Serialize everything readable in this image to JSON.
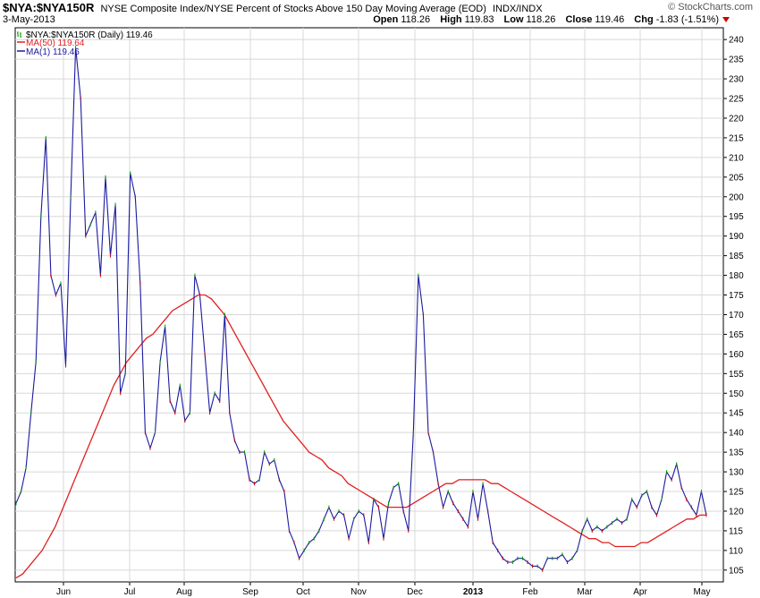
{
  "header": {
    "symbol": "$NYA:$NYA150R",
    "description": "NYSE Composite Index/NYSE Percent of Stocks Above 150 Day Moving Average (EOD)",
    "exchange": "INDX/INDX",
    "brand": "© StockCharts.com",
    "date": "3-May-2013",
    "open_label": "Open",
    "open": "118.26",
    "high_label": "High",
    "high": "119.83",
    "low_label": "Low",
    "low": "118.26",
    "close_label": "Close",
    "close": "119.46",
    "chg_label": "Chg",
    "chg": "-1.83 (-1.51%)"
  },
  "legend": {
    "main": "$NYA:$NYA150R (Daily) 119.46",
    "ma50": "MA(50) 119.64",
    "ma1": "MA(1) 119.46"
  },
  "colors": {
    "price": "#1a1aa0",
    "ma50": "#e02020",
    "grid": "#d8d8d8",
    "up": "#009900",
    "down": "#cc0000"
  },
  "chart_data": {
    "type": "line",
    "x_ticks": [
      "Jun",
      "Jul",
      "Aug",
      "Sep",
      "Oct",
      "Nov",
      "Dec",
      "2013",
      "Feb",
      "Mar",
      "Apr",
      "May"
    ],
    "y_ticks": [
      105,
      110,
      115,
      120,
      125,
      130,
      135,
      140,
      145,
      150,
      155,
      160,
      165,
      170,
      175,
      180,
      185,
      190,
      195,
      200,
      205,
      210,
      215,
      220,
      225,
      230,
      235,
      240
    ],
    "ylim": [
      102,
      243
    ],
    "grid": true,
    "series": [
      {
        "name": "$NYA:$NYA150R",
        "values": [
          122,
          125,
          131,
          145,
          158,
          195,
          215,
          180,
          175,
          178,
          157,
          200,
          238,
          225,
          190,
          193,
          196,
          180,
          205,
          185,
          198,
          150,
          155,
          206,
          200,
          178,
          140,
          136,
          140,
          158,
          167,
          148,
          145,
          152,
          143,
          145,
          180,
          175,
          160,
          145,
          150,
          148,
          170,
          145,
          138,
          135,
          135,
          128,
          127,
          128,
          135,
          132,
          133,
          128,
          125,
          115,
          112,
          108,
          110,
          112,
          113,
          115,
          118,
          121,
          118,
          120,
          119,
          113,
          118,
          120,
          119,
          112,
          123,
          121,
          113,
          122,
          126,
          127,
          120,
          115,
          140,
          180,
          170,
          140,
          135,
          127,
          121,
          125,
          122,
          120,
          118,
          116,
          125,
          118,
          127,
          120,
          112,
          110,
          108,
          107,
          107,
          108,
          108,
          107,
          106,
          106,
          105,
          108,
          108,
          108,
          109,
          107,
          108,
          110,
          115,
          118,
          115,
          116,
          115,
          116,
          117,
          118,
          117,
          118,
          123,
          121,
          124,
          125,
          121,
          119,
          123,
          130,
          128,
          132,
          126,
          123,
          121,
          119,
          125,
          119
        ]
      },
      {
        "name": "MA(50)",
        "values": [
          103,
          104,
          106,
          108,
          110,
          113,
          116,
          120,
          124,
          128,
          132,
          136,
          140,
          144,
          148,
          152,
          155,
          158,
          160,
          162,
          164,
          165,
          167,
          169,
          171,
          172,
          173,
          174,
          175,
          175,
          174,
          172,
          170,
          167,
          164,
          161,
          158,
          155,
          152,
          149,
          146,
          143,
          141,
          139,
          137,
          135,
          134,
          133,
          131,
          130,
          129,
          127,
          126,
          125,
          124,
          123,
          122,
          121,
          121,
          121,
          121,
          122,
          123,
          124,
          125,
          126,
          127,
          127,
          128,
          128,
          128,
          128,
          128,
          127,
          127,
          126,
          125,
          124,
          123,
          122,
          121,
          120,
          119,
          118,
          117,
          116,
          115,
          114,
          113,
          113,
          112,
          112,
          111,
          111,
          111,
          111,
          112,
          112,
          113,
          114,
          115,
          116,
          117,
          118,
          118,
          119,
          119
        ]
      }
    ]
  }
}
